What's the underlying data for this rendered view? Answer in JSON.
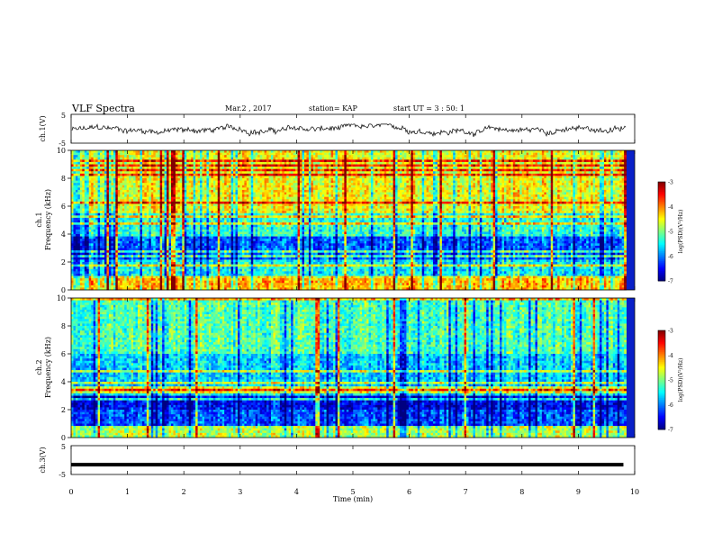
{
  "header": {
    "title": "VLF Spectra",
    "date": "Mar.2 , 2017",
    "station": "station= KAP",
    "start": "start UT =  3 : 50: 1"
  },
  "chart_data": [
    {
      "type": "line",
      "name": "ch1-voltage",
      "ylabel": "ch.1(V)",
      "ylim": [
        -5,
        5
      ],
      "yticks": [
        "5",
        "-5"
      ],
      "xlim": [
        0,
        10
      ],
      "note_series": "noisy waveform oscillating around about -0.5 V between roughly -2.5 and 1.5 V"
    },
    {
      "type": "heatmap",
      "name": "ch1-spectrogram",
      "ylabel": "ch.1 Frequency (kHz)",
      "ylim": [
        0,
        10
      ],
      "yticks": [
        "0",
        "2",
        "4",
        "6",
        "8",
        "10"
      ],
      "xlim": [
        0,
        10
      ],
      "colorbar": {
        "label": "log(PSD)(V²/Hz)",
        "range": [
          -7,
          -3
        ],
        "ticks": [
          "-3",
          "-4",
          "-5",
          "-6",
          "-7"
        ]
      }
    },
    {
      "type": "heatmap",
      "name": "ch2-spectrogram",
      "ylabel": "ch.2 Frequency (kHz)",
      "ylim": [
        0,
        10
      ],
      "yticks": [
        "0",
        "2",
        "4",
        "6",
        "8",
        "10"
      ],
      "xlim": [
        0,
        10
      ],
      "colorbar": {
        "label": "log(PSD)(V²/Hz)",
        "range": [
          -7,
          -3
        ],
        "ticks": [
          "-3",
          "-4",
          "-5",
          "-6",
          "-7"
        ]
      }
    },
    {
      "type": "line",
      "name": "ch3-voltage",
      "ylabel": "ch.3(V)",
      "ylim": [
        -5,
        5
      ],
      "yticks": [
        "5",
        "-5"
      ],
      "xlim": [
        0,
        10
      ],
      "series": [
        {
          "x": [
            0,
            9.8
          ],
          "y": [
            -1.6,
            -1.6
          ]
        }
      ]
    }
  ],
  "xaxis": {
    "label": "Time (min)",
    "ticks": [
      "0",
      "1",
      "2",
      "3",
      "4",
      "5",
      "6",
      "7",
      "8",
      "9",
      "10"
    ]
  }
}
